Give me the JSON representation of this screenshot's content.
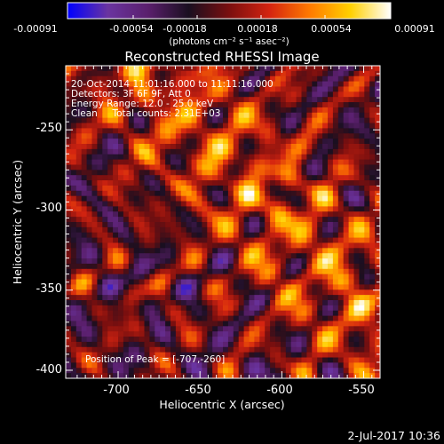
{
  "colorbar": {
    "ticks": [
      "-0.00091",
      "-0.00054",
      "-0.00018",
      "0.00018",
      "0.00054",
      "0.00091"
    ],
    "range": [
      -0.00091,
      0.00091
    ],
    "unit_label": "(photons cm⁻² s⁻¹ asec⁻²)",
    "colors": [
      "#0000ff",
      "#6a34a0",
      "#5a1f6c",
      "#1a0f20",
      "#7a0f0f",
      "#d42410",
      "#ff7a00",
      "#ffd000",
      "#ffffff"
    ]
  },
  "chart_data": {
    "type": "heatmap",
    "title": "Reconstructed RHESSI Image",
    "xlabel": "Heliocentric X (arcsec)",
    "ylabel": "Heliocentric Y (arcsec)",
    "xlim": [
      -732,
      -540
    ],
    "ylim": [
      -405,
      -210
    ],
    "xticks": [
      -700,
      -650,
      -600,
      -550
    ],
    "yticks": [
      -250,
      -300,
      -350,
      -400
    ],
    "annotations": [
      "20-Oct-2014 11:01:16.000 to 11:11:16.000",
      "Detectors: 3F 6F 9F, Att 0",
      "Energy Range: 12.0 - 25.0 keV",
      "Clean     Total counts: 2.31E+03"
    ],
    "peak_label": "Position of Peak = [-707,-260]",
    "peak": [
      -707,
      -260
    ]
  },
  "footer": {
    "date": "2-Jul-2017 10:36"
  }
}
